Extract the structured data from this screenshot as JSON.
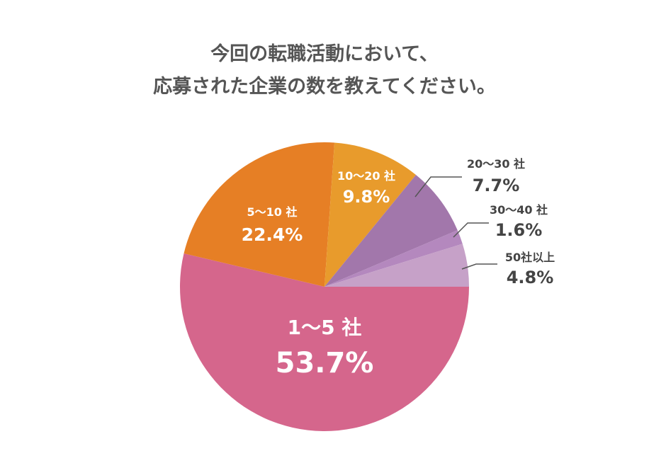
{
  "chart_data": {
    "type": "pie",
    "title": [
      "今回の転職活動において、",
      "応募された企業の数を教えてください。"
    ],
    "slices": [
      {
        "label": "1〜5 社",
        "value_label": "53.7%",
        "value": 53.7,
        "color": "#D5668C"
      },
      {
        "label": "5〜10 社",
        "value_label": "22.4%",
        "value": 22.4,
        "color": "#E67F25"
      },
      {
        "label": "10〜20 社",
        "value_label": "9.8%",
        "value": 9.8,
        "color": "#E89B2C"
      },
      {
        "label": "20〜30 社",
        "value_label": "7.7%",
        "value": 7.7,
        "color": "#A277AB"
      },
      {
        "label": "30〜40 社",
        "value_label": "1.6%",
        "value": 1.6,
        "color": "#B488BE"
      },
      {
        "label": "50社以上",
        "value_label": "4.8%",
        "value": 4.8,
        "color": "#C6A1C8"
      }
    ]
  }
}
